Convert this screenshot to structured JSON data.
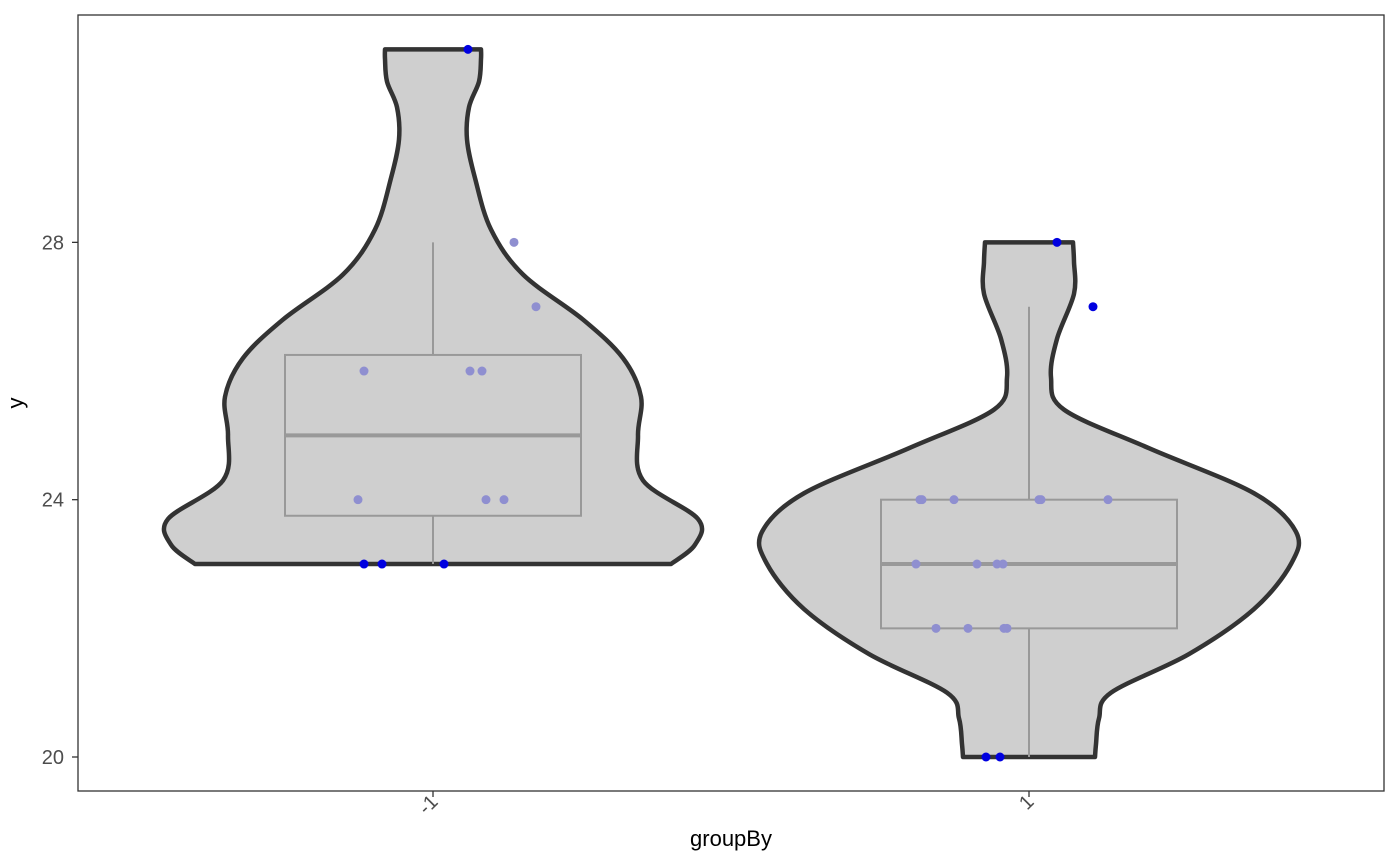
{
  "chart_data": {
    "type": "violin",
    "xlabel": "groupBy",
    "ylabel": "y",
    "categories": [
      "-1",
      "1"
    ],
    "ylim": [
      19.45,
      31.5
    ],
    "yticks": [
      20,
      24,
      28
    ],
    "grid": false,
    "groups": [
      {
        "category": "-1",
        "box": {
          "min": 23,
          "q1": 23.75,
          "median": 25,
          "q3": 26.25,
          "max": 28
        },
        "violin_range": [
          23,
          31
        ],
        "points": [
          {
            "y": 31,
            "highlight": true
          },
          {
            "y": 28
          },
          {
            "y": 27
          },
          {
            "y": 26
          },
          {
            "y": 26
          },
          {
            "y": 26
          },
          {
            "y": 24
          },
          {
            "y": 24
          },
          {
            "y": 24
          },
          {
            "y": 23,
            "highlight": true
          },
          {
            "y": 23,
            "highlight": true
          },
          {
            "y": 23,
            "highlight": true
          }
        ]
      },
      {
        "category": "1",
        "box": {
          "min": 20,
          "q1": 22,
          "median": 23,
          "q3": 24,
          "max": 27
        },
        "violin_range": [
          20,
          28
        ],
        "points": [
          {
            "y": 28,
            "highlight": true
          },
          {
            "y": 27,
            "highlight": true
          },
          {
            "y": 24
          },
          {
            "y": 24
          },
          {
            "y": 24
          },
          {
            "y": 24
          },
          {
            "y": 24
          },
          {
            "y": 24
          },
          {
            "y": 23
          },
          {
            "y": 23
          },
          {
            "y": 23
          },
          {
            "y": 23
          },
          {
            "y": 22
          },
          {
            "y": 22
          },
          {
            "y": 22
          },
          {
            "y": 22
          },
          {
            "y": 20,
            "highlight": true
          },
          {
            "y": 20,
            "highlight": true
          }
        ]
      }
    ]
  },
  "colors": {
    "violin_fill": "#cfcfcf",
    "violin_stroke": "#333333",
    "box_stroke": "#999999",
    "point": "#8f8fd0",
    "point_highlight": "#0000e0",
    "panel_border": "#333333",
    "tick_text": "#4d4d4d"
  }
}
